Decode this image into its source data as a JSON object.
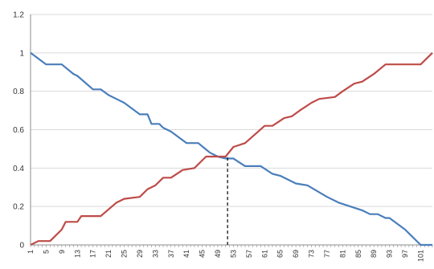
{
  "chart_data": {
    "type": "line",
    "title": "",
    "xlabel": "",
    "ylabel": "",
    "ylim": [
      0,
      1.2
    ],
    "yticks": [
      "0",
      "0.2",
      "0.4",
      "0.6",
      "0.8",
      "1",
      "1.2"
    ],
    "yticks_values": [
      0,
      0.2,
      0.4,
      0.6,
      0.8,
      1.0,
      1.2
    ],
    "xticks": [
      "1",
      "5",
      "9",
      "13",
      "17",
      "21",
      "25",
      "29",
      "33",
      "37",
      "41",
      "45",
      "49",
      "53",
      "57",
      "61",
      "65",
      "69",
      "73",
      "77",
      "81",
      "85",
      "89",
      "93",
      "97",
      "101"
    ],
    "xlim": [
      1,
      104
    ],
    "grid": true,
    "legend": "none",
    "vline": {
      "x": 51.5,
      "y": 0.455,
      "style": "dashed",
      "color": "#000000"
    },
    "series": [
      {
        "color": "#4a7ebb",
        "step": true,
        "points": [
          [
            1,
            1.0
          ],
          [
            3,
            0.97
          ],
          [
            5,
            0.94
          ],
          [
            9,
            0.94
          ],
          [
            12,
            0.89
          ],
          [
            13,
            0.88
          ],
          [
            17,
            0.81
          ],
          [
            19,
            0.81
          ],
          [
            21,
            0.78
          ],
          [
            23,
            0.76
          ],
          [
            25,
            0.74
          ],
          [
            29,
            0.68
          ],
          [
            31,
            0.68
          ],
          [
            32,
            0.63
          ],
          [
            34,
            0.63
          ],
          [
            35,
            0.61
          ],
          [
            37,
            0.59
          ],
          [
            41,
            0.53
          ],
          [
            44,
            0.53
          ],
          [
            47,
            0.48
          ],
          [
            49,
            0.46
          ],
          [
            51,
            0.45
          ],
          [
            53,
            0.45
          ],
          [
            56,
            0.41
          ],
          [
            60,
            0.41
          ],
          [
            63,
            0.37
          ],
          [
            65,
            0.36
          ],
          [
            69,
            0.32
          ],
          [
            72,
            0.31
          ],
          [
            77,
            0.25
          ],
          [
            80,
            0.22
          ],
          [
            83,
            0.2
          ],
          [
            86,
            0.18
          ],
          [
            88,
            0.16
          ],
          [
            90,
            0.16
          ],
          [
            92,
            0.14
          ],
          [
            93,
            0.14
          ],
          [
            97,
            0.08
          ],
          [
            101,
            0.0
          ],
          [
            104,
            0.0
          ]
        ]
      },
      {
        "color": "#be4b48",
        "step": true,
        "points": [
          [
            1,
            0.0
          ],
          [
            3,
            0.02
          ],
          [
            6,
            0.02
          ],
          [
            9,
            0.08
          ],
          [
            10,
            0.12
          ],
          [
            13,
            0.12
          ],
          [
            14,
            0.15
          ],
          [
            19,
            0.15
          ],
          [
            23,
            0.22
          ],
          [
            25,
            0.24
          ],
          [
            29,
            0.25
          ],
          [
            31,
            0.29
          ],
          [
            33,
            0.31
          ],
          [
            35,
            0.35
          ],
          [
            37,
            0.35
          ],
          [
            40,
            0.39
          ],
          [
            43,
            0.4
          ],
          [
            46,
            0.46
          ],
          [
            51,
            0.46
          ],
          [
            53,
            0.51
          ],
          [
            56,
            0.53
          ],
          [
            61,
            0.62
          ],
          [
            63,
            0.62
          ],
          [
            66,
            0.66
          ],
          [
            68,
            0.67
          ],
          [
            70,
            0.7
          ],
          [
            73,
            0.74
          ],
          [
            75,
            0.76
          ],
          [
            79,
            0.77
          ],
          [
            81,
            0.8
          ],
          [
            84,
            0.84
          ],
          [
            86,
            0.85
          ],
          [
            89,
            0.89
          ],
          [
            92,
            0.94
          ],
          [
            101,
            0.94
          ],
          [
            104,
            1.0
          ]
        ]
      }
    ]
  }
}
